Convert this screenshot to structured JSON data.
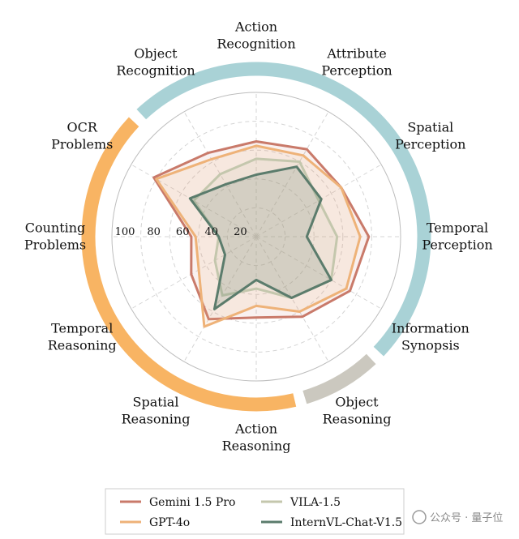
{
  "chart_data": {
    "type": "radar",
    "categories": [
      "Action\nRecognition",
      "Attribute\nPerception",
      "Spatial\nPerception",
      "Temporal\nPerception",
      "Information\nSynopsis",
      "Object\nReasoning",
      "Action\nReasoning",
      "Spatial\nReasoning",
      "Temporal\nReasoning",
      "Counting\nProblems",
      "OCR\nProblems",
      "Object\nRecognition"
    ],
    "radial_ticks": [
      "20",
      "40",
      "60",
      "80",
      "100"
    ],
    "radial_range": [
      0,
      100
    ],
    "series": [
      {
        "name": "Gemini 1.5 Pro",
        "color": "#c97a6a",
        "values": [
          66,
          70,
          68,
          78,
          75,
          64,
          56,
          66,
          52,
          45,
          82,
          67
        ]
      },
      {
        "name": "GPT-4o",
        "color": "#eeb278",
        "values": [
          63,
          65,
          68,
          72,
          72,
          60,
          48,
          72,
          46,
          42,
          80,
          62
        ]
      },
      {
        "name": "VILA-1.5",
        "color": "#c4c7ad",
        "values": [
          54,
          60,
          50,
          56,
          60,
          49,
          36,
          47,
          33,
          26,
          50,
          50
        ]
      },
      {
        "name": "InternVL-Chat-V1.5",
        "color": "#5b7c6c",
        "values": [
          43,
          56,
          52,
          35,
          60,
          49,
          30,
          58,
          25,
          26,
          53,
          42
        ]
      }
    ],
    "group_arcs": [
      {
        "color": "#a9d2d6",
        "from_index": 10.5,
        "to_index": 4.5
      },
      {
        "color": "#cbc8bf",
        "from_index": 4.5,
        "to_index": 5.5
      },
      {
        "color": "#f8b463",
        "from_index": 5.5,
        "to_index": 10.5
      }
    ],
    "grid": true,
    "legend_position": "bottom"
  },
  "watermark": {
    "text": "公众号 · 量子位"
  }
}
